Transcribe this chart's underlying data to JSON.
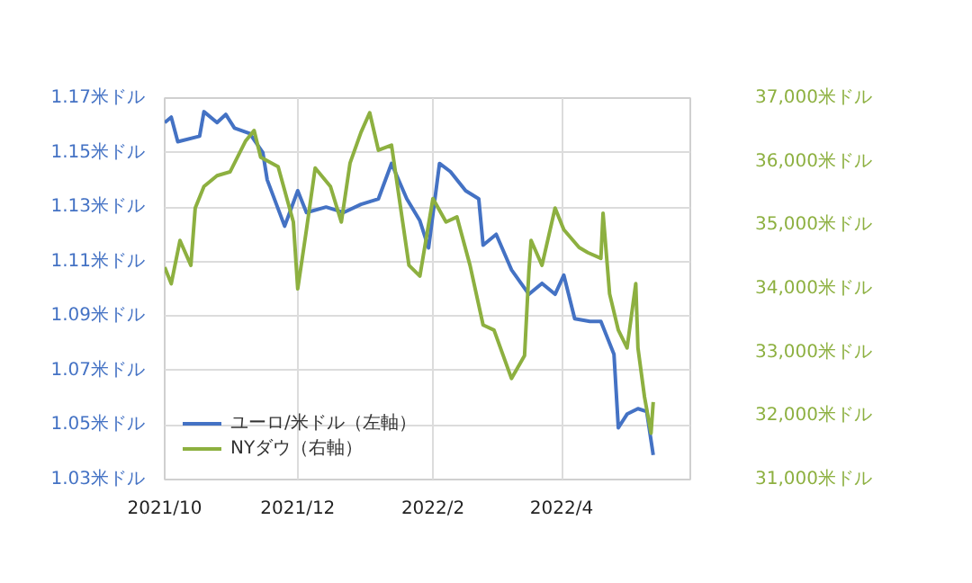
{
  "chart_data": {
    "type": "line",
    "x": [
      "2021-10-01",
      "2021-10-04",
      "2021-10-07",
      "2021-10-17",
      "2021-10-19",
      "2021-10-25",
      "2021-10-29",
      "2021-11-02",
      "2021-11-09",
      "2021-11-15",
      "2021-11-17",
      "2021-11-25",
      "2021-12-01",
      "2021-12-05",
      "2021-12-14",
      "2021-12-22",
      "2021-12-30",
      "2022-01-07",
      "2022-01-13",
      "2022-01-20",
      "2022-01-26",
      "2022-01-30",
      "2022-02-04",
      "2022-02-09",
      "2022-02-16",
      "2022-02-22",
      "2022-02-24",
      "2022-03-02",
      "2022-03-09",
      "2022-03-17",
      "2022-03-23",
      "2022-03-29",
      "2022-04-02",
      "2022-04-07",
      "2022-04-14",
      "2022-04-19",
      "2022-04-22",
      "2022-04-25",
      "2022-04-27",
      "2022-05-01",
      "2022-05-06",
      "2022-05-10",
      "2022-05-13"
    ],
    "series": [
      {
        "name": "ユーロ/米ドル（左軸）",
        "color": "#4472c4",
        "values": [
          1.161,
          1.163,
          1.154,
          1.156,
          1.165,
          1.161,
          1.164,
          1.159,
          1.157,
          1.15,
          1.14,
          1.123,
          1.136,
          1.128,
          1.13,
          1.128,
          1.131,
          1.133,
          1.146,
          1.133,
          1.125,
          1.115,
          1.146,
          1.143,
          1.136,
          1.133,
          1.116,
          1.12,
          1.107,
          1.098,
          1.102,
          1.098,
          1.105,
          1.089,
          1.088,
          1.088,
          1.082,
          1.076,
          1.049,
          1.054,
          1.056,
          1.055,
          1.039
        ]
      },
      {
        "name": "NYダウ（右軸）",
        "color": "#8db040",
        "axis": "y2",
        "x": [
          "2021-10-01",
          "2021-10-04",
          "2021-10-08",
          "2021-10-13",
          "2021-10-15",
          "2021-10-19",
          "2021-10-25",
          "2021-10-31",
          "2021-11-07",
          "2021-11-11",
          "2021-11-14",
          "2021-11-22",
          "2021-11-29",
          "2021-12-01",
          "2021-12-05",
          "2021-12-09",
          "2021-12-16",
          "2021-12-21",
          "2021-12-25",
          "2021-12-30",
          "2022-01-03",
          "2022-01-07",
          "2022-01-13",
          "2022-01-21",
          "2022-01-26",
          "2022-02-01",
          "2022-02-07",
          "2022-02-12",
          "2022-02-18",
          "2022-02-24",
          "2022-03-01",
          "2022-03-09",
          "2022-03-15",
          "2022-03-17",
          "2022-03-18",
          "2022-03-23",
          "2022-03-29",
          "2022-04-02",
          "2022-04-09",
          "2022-04-13",
          "2022-04-19",
          "2022-04-20",
          "2022-04-23",
          "2022-04-27",
          "2022-05-01",
          "2022-05-05",
          "2022-05-06",
          "2022-05-09",
          "2022-05-12",
          "2022-05-13"
        ],
        "values": [
          34340,
          34080,
          34760,
          34370,
          35270,
          35610,
          35780,
          35840,
          36320,
          36490,
          36070,
          35920,
          35050,
          34000,
          34930,
          35900,
          35610,
          35050,
          35980,
          36460,
          36770,
          36180,
          36260,
          34370,
          34200,
          35420,
          35050,
          35130,
          34370,
          33430,
          33350,
          32590,
          32950,
          34280,
          34760,
          34370,
          35270,
          34930,
          34650,
          34570,
          34480,
          35190,
          33920,
          33350,
          33070,
          34080,
          33070,
          32300,
          31730,
          32220
        ]
      }
    ],
    "xlim": [
      "2021-10-01",
      "2022-05-30"
    ],
    "xticks": [
      {
        "value": "2021-10-01",
        "label": "2021/10"
      },
      {
        "value": "2021-12-01",
        "label": "2021/12"
      },
      {
        "value": "2022-02-01",
        "label": "2022/2"
      },
      {
        "value": "2022-04-01",
        "label": "2022/4"
      }
    ],
    "ylim": [
      1.03,
      1.17
    ],
    "yticks": [
      {
        "value": 1.03,
        "label": "1.03米ドル"
      },
      {
        "value": 1.05,
        "label": "1.05米ドル"
      },
      {
        "value": 1.07,
        "label": "1.07米ドル"
      },
      {
        "value": 1.09,
        "label": "1.09米ドル"
      },
      {
        "value": 1.11,
        "label": "1.11米ドル"
      },
      {
        "value": 1.13,
        "label": "1.13米ドル"
      },
      {
        "value": 1.15,
        "label": "1.15米ドル"
      },
      {
        "value": 1.17,
        "label": "1.17米ドル"
      }
    ],
    "y2lim": [
      31000,
      37000
    ],
    "y2ticks": [
      {
        "value": 31000,
        "label": "31,000米ドル"
      },
      {
        "value": 32000,
        "label": "32,000米ドル"
      },
      {
        "value": 33000,
        "label": "33,000米ドル"
      },
      {
        "value": 34000,
        "label": "34,000米ドル"
      },
      {
        "value": 35000,
        "label": "35,000米ドル"
      },
      {
        "value": 36000,
        "label": "36,000米ドル"
      },
      {
        "value": 37000,
        "label": "37,000米ドル"
      }
    ],
    "grid": true,
    "legend": "bottom left",
    "line_style": "solid"
  }
}
